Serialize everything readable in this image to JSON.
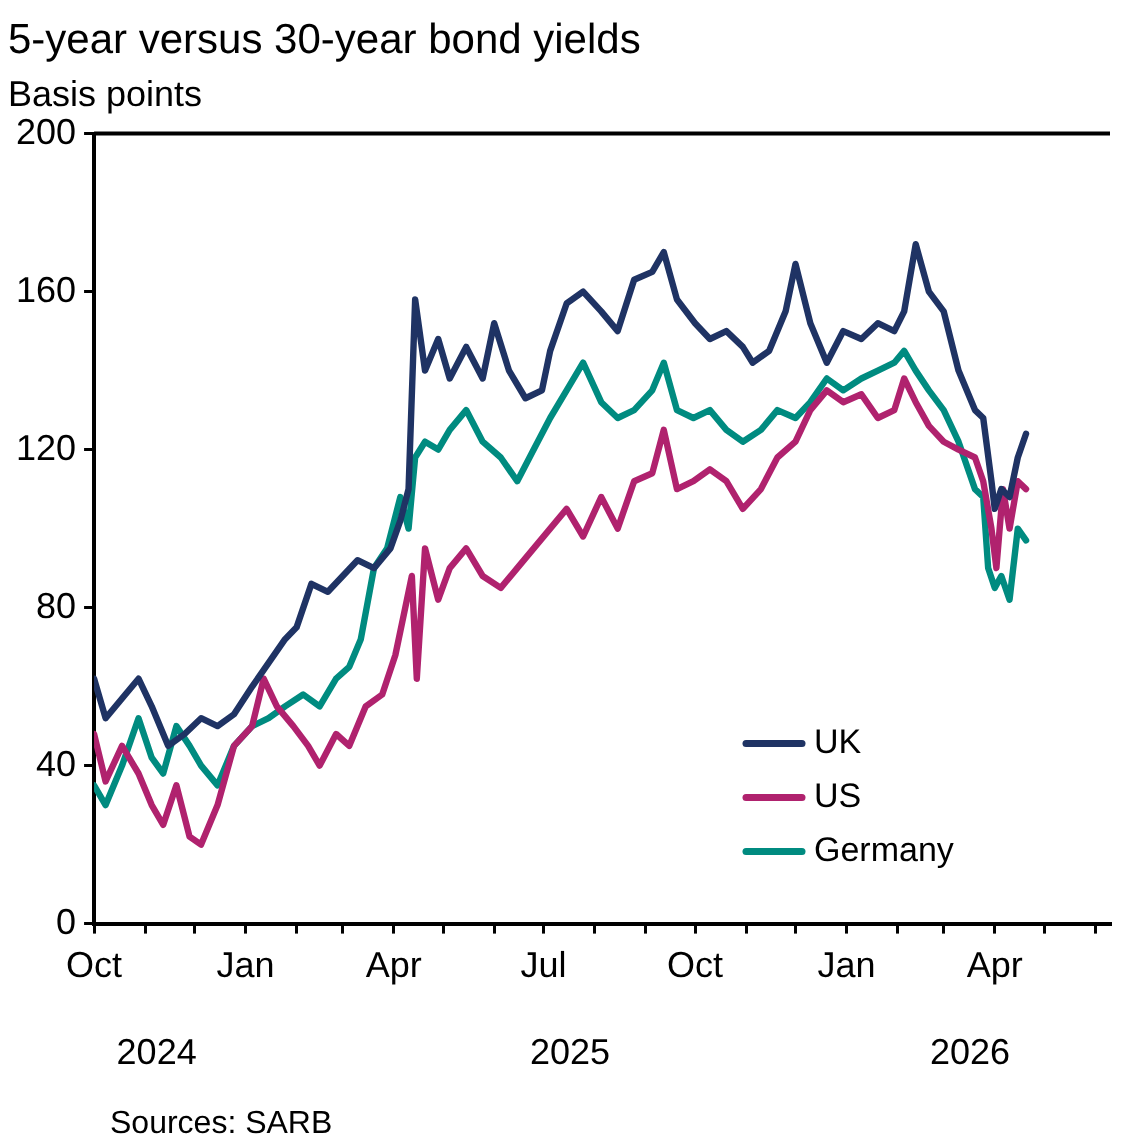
{
  "chart_data": {
    "type": "line",
    "title": "5-year versus 30-year bond yields",
    "subtitle": "Basis points",
    "annotations": [
      "Sources: SARB"
    ],
    "xlim": [
      "2024-10-01",
      "2026-06-10"
    ],
    "xticks": [
      {
        "value": "2024-10-01",
        "label": "Oct"
      },
      {
        "value": "2024-11-01",
        "label": null
      },
      {
        "value": "2024-12-01",
        "label": null
      },
      {
        "value": "2025-01-01",
        "label": "Jan"
      },
      {
        "value": "2025-02-01",
        "label": null
      },
      {
        "value": "2025-03-01",
        "label": null
      },
      {
        "value": "2025-04-01",
        "label": "Apr"
      },
      {
        "value": "2025-05-01",
        "label": null
      },
      {
        "value": "2025-06-01",
        "label": null
      },
      {
        "value": "2025-07-01",
        "label": "Jul"
      },
      {
        "value": "2025-08-01",
        "label": null
      },
      {
        "value": "2025-09-01",
        "label": null
      },
      {
        "value": "2025-10-01",
        "label": "Oct"
      },
      {
        "value": "2025-11-01",
        "label": null
      },
      {
        "value": "2025-12-01",
        "label": null
      },
      {
        "value": "2026-01-01",
        "label": "Jan"
      },
      {
        "value": "2026-02-01",
        "label": null
      },
      {
        "value": "2026-03-01",
        "label": null
      },
      {
        "value": "2026-04-01",
        "label": "Apr"
      },
      {
        "value": "2026-05-01",
        "label": null
      },
      {
        "value": "2026-06-01",
        "label": null
      }
    ],
    "x2lim": [
      "2024-10-01",
      "2026-06-10"
    ],
    "x2ticks": [
      {
        "value": "2024-11-08",
        "label": "2024"
      },
      {
        "value": "2025-07-17",
        "label": "2025"
      },
      {
        "value": "2026-03-17",
        "label": "2026"
      }
    ],
    "ylim": [
      0,
      200
    ],
    "yticks": [
      0,
      40,
      80,
      120,
      160,
      200
    ],
    "grid": false,
    "legend": "bottom right",
    "marker": "none",
    "line_style": "solid",
    "series": [
      {
        "name": "UK",
        "color": "#1f3364",
        "x": [
          "2024-10-01",
          "2024-10-08",
          "2024-10-20",
          "2024-10-28",
          "2024-11-05",
          "2024-11-15",
          "2024-11-25",
          "2024-12-05",
          "2024-12-15",
          "2024-12-25",
          "2025-01-05",
          "2025-01-15",
          "2025-01-25",
          "2025-02-01",
          "2025-02-10",
          "2025-02-20",
          "2025-03-01",
          "2025-03-10",
          "2025-03-20",
          "2025-03-30",
          "2025-04-05",
          "2025-04-10",
          "2025-04-14",
          "2025-04-20",
          "2025-04-28",
          "2025-05-05",
          "2025-05-15",
          "2025-05-25",
          "2025-06-01",
          "2025-06-10",
          "2025-06-20",
          "2025-06-30",
          "2025-07-05",
          "2025-07-15",
          "2025-07-25",
          "2025-08-05",
          "2025-08-15",
          "2025-08-25",
          "2025-09-05",
          "2025-09-12",
          "2025-09-20",
          "2025-10-01",
          "2025-10-10",
          "2025-10-20",
          "2025-10-30",
          "2025-11-05",
          "2025-11-15",
          "2025-11-25",
          "2025-12-01",
          "2025-12-10",
          "2025-12-20",
          "2025-12-30",
          "2026-01-10",
          "2026-01-20",
          "2026-01-30",
          "2026-02-05",
          "2026-02-12",
          "2026-02-20",
          "2026-03-01",
          "2026-03-10",
          "2026-03-20",
          "2026-03-25",
          "2026-03-30",
          "2026-04-01",
          "2026-04-05",
          "2026-04-10",
          "2026-04-15",
          "2026-04-20"
        ],
        "values": [
          62,
          52,
          58,
          62,
          55,
          45,
          48,
          52,
          50,
          53,
          60,
          66,
          72,
          75,
          86,
          84,
          88,
          92,
          90,
          95,
          102,
          110,
          158,
          140,
          148,
          138,
          146,
          138,
          152,
          140,
          133,
          135,
          145,
          157,
          160,
          155,
          150,
          163,
          165,
          170,
          158,
          152,
          148,
          150,
          146,
          142,
          145,
          155,
          167,
          152,
          142,
          150,
          148,
          152,
          150,
          155,
          172,
          160,
          155,
          140,
          130,
          128,
          112,
          105,
          110,
          108,
          118,
          124
        ]
      },
      {
        "name": "US",
        "color": "#b0226e",
        "x": [
          "2024-10-01",
          "2024-10-08",
          "2024-10-18",
          "2024-10-28",
          "2024-11-05",
          "2024-11-12",
          "2024-11-20",
          "2024-11-28",
          "2024-12-05",
          "2024-12-15",
          "2024-12-25",
          "2025-01-05",
          "2025-01-12",
          "2025-01-20",
          "2025-01-30",
          "2025-02-08",
          "2025-02-15",
          "2025-02-25",
          "2025-03-05",
          "2025-03-15",
          "2025-03-25",
          "2025-04-02",
          "2025-04-08",
          "2025-04-12",
          "2025-04-15",
          "2025-04-20",
          "2025-04-28",
          "2025-05-05",
          "2025-05-15",
          "2025-05-25",
          "2025-06-05",
          "2025-06-15",
          "2025-06-25",
          "2025-07-05",
          "2025-07-15",
          "2025-07-25",
          "2025-08-05",
          "2025-08-15",
          "2025-08-25",
          "2025-09-05",
          "2025-09-12",
          "2025-09-20",
          "2025-09-30",
          "2025-10-10",
          "2025-10-20",
          "2025-10-30",
          "2025-11-10",
          "2025-11-20",
          "2025-12-01",
          "2025-12-10",
          "2025-12-20",
          "2025-12-30",
          "2026-01-10",
          "2026-01-20",
          "2026-01-30",
          "2026-02-05",
          "2026-02-12",
          "2026-02-20",
          "2026-03-01",
          "2026-03-10",
          "2026-03-20",
          "2026-03-25",
          "2026-03-30",
          "2026-04-02",
          "2026-04-06",
          "2026-04-10",
          "2026-04-15",
          "2026-04-20"
        ],
        "values": [
          48,
          36,
          45,
          38,
          30,
          25,
          35,
          22,
          20,
          30,
          45,
          50,
          62,
          55,
          50,
          45,
          40,
          48,
          45,
          55,
          58,
          68,
          80,
          88,
          62,
          95,
          82,
          90,
          95,
          88,
          85,
          90,
          95,
          100,
          105,
          98,
          108,
          100,
          112,
          114,
          125,
          110,
          112,
          115,
          112,
          105,
          110,
          118,
          122,
          130,
          135,
          132,
          134,
          128,
          130,
          138,
          132,
          126,
          122,
          120,
          118,
          112,
          100,
          90,
          110,
          100,
          112,
          110
        ]
      },
      {
        "name": "Germany",
        "color": "#008b80",
        "x": [
          "2024-10-01",
          "2024-10-08",
          "2024-10-18",
          "2024-10-28",
          "2024-11-05",
          "2024-11-12",
          "2024-11-20",
          "2024-11-28",
          "2024-12-05",
          "2024-12-15",
          "2024-12-25",
          "2025-01-05",
          "2025-01-15",
          "2025-01-25",
          "2025-02-05",
          "2025-02-15",
          "2025-02-25",
          "2025-03-05",
          "2025-03-12",
          "2025-03-20",
          "2025-03-28",
          "2025-04-05",
          "2025-04-10",
          "2025-04-14",
          "2025-04-20",
          "2025-04-28",
          "2025-05-05",
          "2025-05-15",
          "2025-05-25",
          "2025-06-05",
          "2025-06-15",
          "2025-06-25",
          "2025-07-05",
          "2025-07-15",
          "2025-07-25",
          "2025-08-05",
          "2025-08-15",
          "2025-08-25",
          "2025-09-05",
          "2025-09-12",
          "2025-09-20",
          "2025-09-30",
          "2025-10-10",
          "2025-10-20",
          "2025-10-30",
          "2025-11-10",
          "2025-11-20",
          "2025-12-01",
          "2025-12-10",
          "2025-12-20",
          "2025-12-30",
          "2026-01-10",
          "2026-01-20",
          "2026-01-30",
          "2026-02-05",
          "2026-02-12",
          "2026-02-20",
          "2026-03-01",
          "2026-03-10",
          "2026-03-20",
          "2026-03-25",
          "2026-03-28",
          "2026-04-01",
          "2026-04-05",
          "2026-04-10",
          "2026-04-15",
          "2026-04-20"
        ],
        "values": [
          35,
          30,
          40,
          52,
          42,
          38,
          50,
          45,
          40,
          35,
          45,
          50,
          52,
          55,
          58,
          55,
          62,
          65,
          72,
          90,
          95,
          108,
          100,
          118,
          122,
          120,
          125,
          130,
          122,
          118,
          112,
          120,
          128,
          135,
          142,
          132,
          128,
          130,
          135,
          142,
          130,
          128,
          130,
          125,
          122,
          125,
          130,
          128,
          132,
          138,
          135,
          138,
          140,
          142,
          145,
          140,
          135,
          130,
          122,
          110,
          108,
          90,
          85,
          88,
          82,
          100,
          97
        ]
      }
    ]
  }
}
